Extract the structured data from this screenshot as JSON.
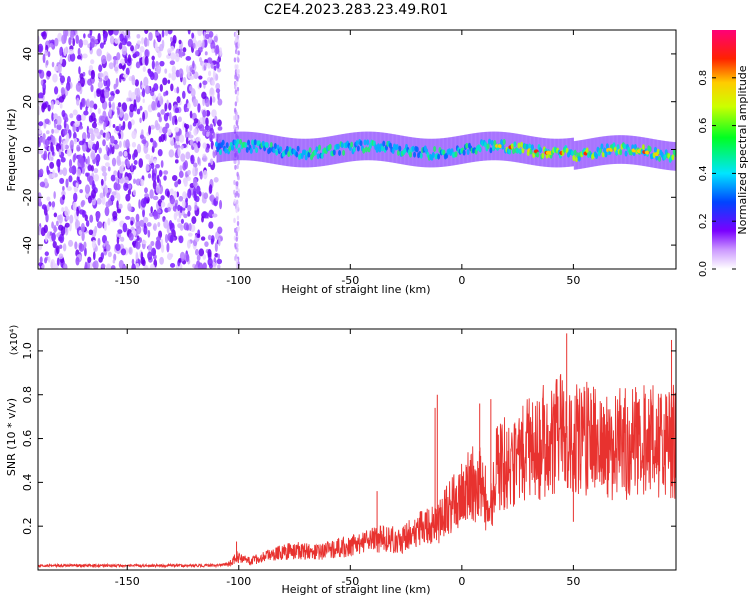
{
  "title": "C2E4.2023.283.23.49.R01",
  "chart_data": [
    {
      "type": "heatmap",
      "xlabel": "Height of straight line (km)",
      "ylabel": "Frequency (Hz)",
      "xlim": [
        -190,
        96
      ],
      "ylim": [
        -50,
        50
      ],
      "x_ticks": [
        -150,
        -100,
        -50,
        0,
        50
      ],
      "y_ticks": [
        -40,
        -20,
        0,
        20,
        40
      ],
      "colorbar": {
        "label": "Normalized spectral amplitude",
        "range": [
          0,
          1
        ],
        "ticks": [
          0.0,
          0.2,
          0.4,
          0.6,
          0.8
        ],
        "tick_labels": [
          "0.0",
          "0.2",
          "0.4",
          "0.6",
          "0.8"
        ]
      },
      "features": {
        "noise_region_x": [
          -190,
          -108
        ],
        "noise_stripe_x": [
          -102,
          -100
        ],
        "signal_band_center_hz": 0,
        "signal_band_halfwidth_hz": 6,
        "signal_start_x": -110,
        "strong_signal_from_x": 15
      }
    },
    {
      "type": "line",
      "xlabel": "Height of straight line (km)",
      "ylabel": "SNR (10 * v/v)",
      "y_multiplier": "(x10⁴)",
      "xlim": [
        -190,
        96
      ],
      "ylim": [
        0,
        1.1
      ],
      "x_ticks": [
        -150,
        -100,
        -50,
        0,
        50
      ],
      "y_ticks": [
        0.2,
        0.4,
        0.6,
        0.8,
        1.0
      ],
      "series": [
        {
          "color": "#e8322f",
          "x": [
            -190,
            -150,
            -110,
            -104,
            -101,
            -95,
            -85,
            -75,
            -65,
            -55,
            -45,
            -35,
            -28,
            -20,
            -10,
            -5,
            0,
            5,
            10,
            12,
            15,
            20,
            25,
            30,
            35,
            40,
            45,
            50,
            55,
            60,
            65,
            70,
            75,
            80,
            85,
            90,
            96
          ],
          "y": [
            0.02,
            0.02,
            0.02,
            0.03,
            0.06,
            0.04,
            0.07,
            0.09,
            0.08,
            0.1,
            0.12,
            0.15,
            0.13,
            0.18,
            0.22,
            0.3,
            0.34,
            0.4,
            0.38,
            0.2,
            0.45,
            0.5,
            0.52,
            0.55,
            0.58,
            0.6,
            0.62,
            0.58,
            0.6,
            0.58,
            0.56,
            0.58,
            0.57,
            0.58,
            0.59,
            0.6,
            0.58
          ]
        }
      ],
      "spikes": [
        {
          "x": -101,
          "y": 0.13
        },
        {
          "x": -38,
          "y": 0.36
        },
        {
          "x": -12,
          "y": 0.74
        },
        {
          "x": -11,
          "y": 0.8
        },
        {
          "x": 8,
          "y": 0.76
        },
        {
          "x": 13,
          "y": 0.78
        },
        {
          "x": 47,
          "y": 1.08
        },
        {
          "x": 50,
          "y": 0.22
        },
        {
          "x": 94,
          "y": 1.05
        }
      ]
    }
  ]
}
